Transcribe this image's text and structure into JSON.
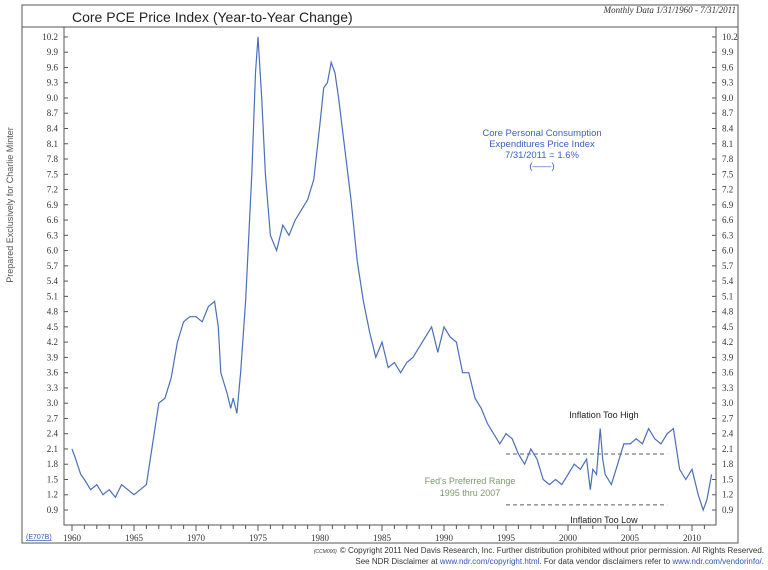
{
  "header": {
    "title": "Core PCE Price Index (Year-to-Year Change)",
    "subtitle": "Monthly Data 1/31/1960 - 7/31/2011",
    "side_label": "Prepared Exclusively for Charlie Minter"
  },
  "footer": {
    "chart_code": "(E707B)",
    "small_code": "(CCM000)",
    "copyright": "© Copyright 2011 Ned Davis Research, Inc.  Further distribution prohibited without prior permission.  All Rights Reserved.",
    "disclaimer_prefix": "See NDR Disclaimer at ",
    "disclaimer_link1": "www.ndr.com/copyright.html",
    "disclaimer_middle": ". For data vendor disclaimers refer to ",
    "disclaimer_link2": "www.ndr.com/vendorinfo/",
    "disclaimer_suffix": "."
  },
  "colors": {
    "series": "#4a6fb8",
    "legend_text": "#3a62c0",
    "range_text": "#7a9a6a",
    "frame": "#555555"
  },
  "chart_data": {
    "type": "line",
    "title": "Core PCE Price Index (Year-to-Year Change)",
    "xlim": [
      1959.4,
      2012.2
    ],
    "ylim": [
      0.6,
      10.5
    ],
    "x_ticks": [
      1960,
      1965,
      1970,
      1975,
      1980,
      1985,
      1990,
      1995,
      2000,
      2005,
      2010
    ],
    "y_ticks": [
      "10.2",
      "9.9",
      "9.6",
      "9.3",
      "9.0",
      "8.7",
      "8.4",
      "8.1",
      "7.8",
      "7.5",
      "7.2",
      "6.9",
      "6.6",
      "6.3",
      "6.0",
      "5.7",
      "5.4",
      "5.1",
      "4.8",
      "4.5",
      "4.2",
      "3.9",
      "3.6",
      "3.3",
      "3.0",
      "2.7",
      "2.4",
      "2.1",
      "1.8",
      "1.5",
      "1.2",
      "0.9"
    ],
    "grid": false,
    "legend": {
      "lines": [
        "Core Personal Consumption",
        "Expenditures Price Index",
        "7/31/2011 = 1.6%",
        "(——)"
      ],
      "placement": "top-right"
    },
    "annotations": {
      "too_high": "Inflation Too High",
      "too_low": "Inflation Too Low",
      "range_line1": "Fed's Preferred Range",
      "range_line2": "1995 thru 2007",
      "range_upper": 2.0,
      "range_lower": 1.0,
      "range_start": 1995,
      "range_end": 2008
    },
    "series": [
      {
        "x": [
          1960,
          1960.3,
          1960.7,
          1961,
          1961.5,
          1962,
          1962.5,
          1963,
          1963.5,
          1964,
          1964.5,
          1965,
          1965.5,
          1966,
          1966.5,
          1967,
          1967.5,
          1968,
          1968.5,
          1969,
          1969.5,
          1970,
          1970.5,
          1971,
          1971.5,
          1971.8,
          1972,
          1972.5,
          1972.8,
          1973,
          1973.3,
          1973.6,
          1974,
          1974.5,
          1974.8,
          1975,
          1975.3,
          1975.6,
          1976,
          1976.5,
          1977,
          1977.5,
          1978,
          1978.5,
          1979,
          1979.5,
          1980,
          1980.3,
          1980.6,
          1980.9,
          1981.2,
          1981.5,
          1982,
          1982.5,
          1983,
          1983.5,
          1984,
          1984.5,
          1985,
          1985.5,
          1986,
          1986.5,
          1987,
          1987.5,
          1988,
          1988.5,
          1989,
          1989.5,
          1990,
          1990.5,
          1991,
          1991.5,
          1992,
          1992.5,
          1993,
          1993.5,
          1994,
          1994.5,
          1995,
          1995.5,
          1996,
          1996.5,
          1997,
          1997.5,
          1998,
          1998.5,
          1999,
          1999.5,
          2000,
          2000.5,
          2001,
          2001.5,
          2001.8,
          2002,
          2002.3,
          2002.6,
          2002.8,
          2003,
          2003.5,
          2004,
          2004.5,
          2005,
          2005.5,
          2006,
          2006.5,
          2007,
          2007.5,
          2008,
          2008.5,
          2009,
          2009.5,
          2010,
          2010.5,
          2010.9,
          2011.2,
          2011.58
        ],
        "y": [
          2.1,
          1.9,
          1.6,
          1.5,
          1.3,
          1.4,
          1.2,
          1.3,
          1.15,
          1.4,
          1.3,
          1.2,
          1.3,
          1.4,
          2.2,
          3.0,
          3.1,
          3.5,
          4.2,
          4.6,
          4.7,
          4.7,
          4.6,
          4.9,
          5.0,
          4.5,
          3.6,
          3.2,
          2.9,
          3.1,
          2.8,
          3.6,
          5.0,
          7.5,
          9.5,
          10.2,
          9.0,
          7.5,
          6.3,
          6.0,
          6.5,
          6.3,
          6.6,
          6.8,
          7.0,
          7.4,
          8.5,
          9.2,
          9.3,
          9.7,
          9.5,
          9.0,
          8.0,
          7.0,
          5.8,
          5.0,
          4.4,
          3.9,
          4.2,
          3.7,
          3.8,
          3.6,
          3.8,
          3.9,
          4.1,
          4.3,
          4.5,
          4.0,
          4.5,
          4.3,
          4.2,
          3.6,
          3.6,
          3.1,
          2.9,
          2.6,
          2.4,
          2.2,
          2.4,
          2.3,
          2.0,
          1.8,
          2.1,
          1.9,
          1.5,
          1.4,
          1.5,
          1.4,
          1.6,
          1.8,
          1.7,
          1.9,
          1.3,
          1.7,
          1.6,
          2.5,
          1.9,
          1.6,
          1.4,
          1.8,
          2.2,
          2.2,
          2.3,
          2.2,
          2.5,
          2.3,
          2.2,
          2.4,
          2.5,
          1.7,
          1.5,
          1.7,
          1.2,
          0.9,
          1.1,
          1.6
        ]
      }
    ]
  }
}
